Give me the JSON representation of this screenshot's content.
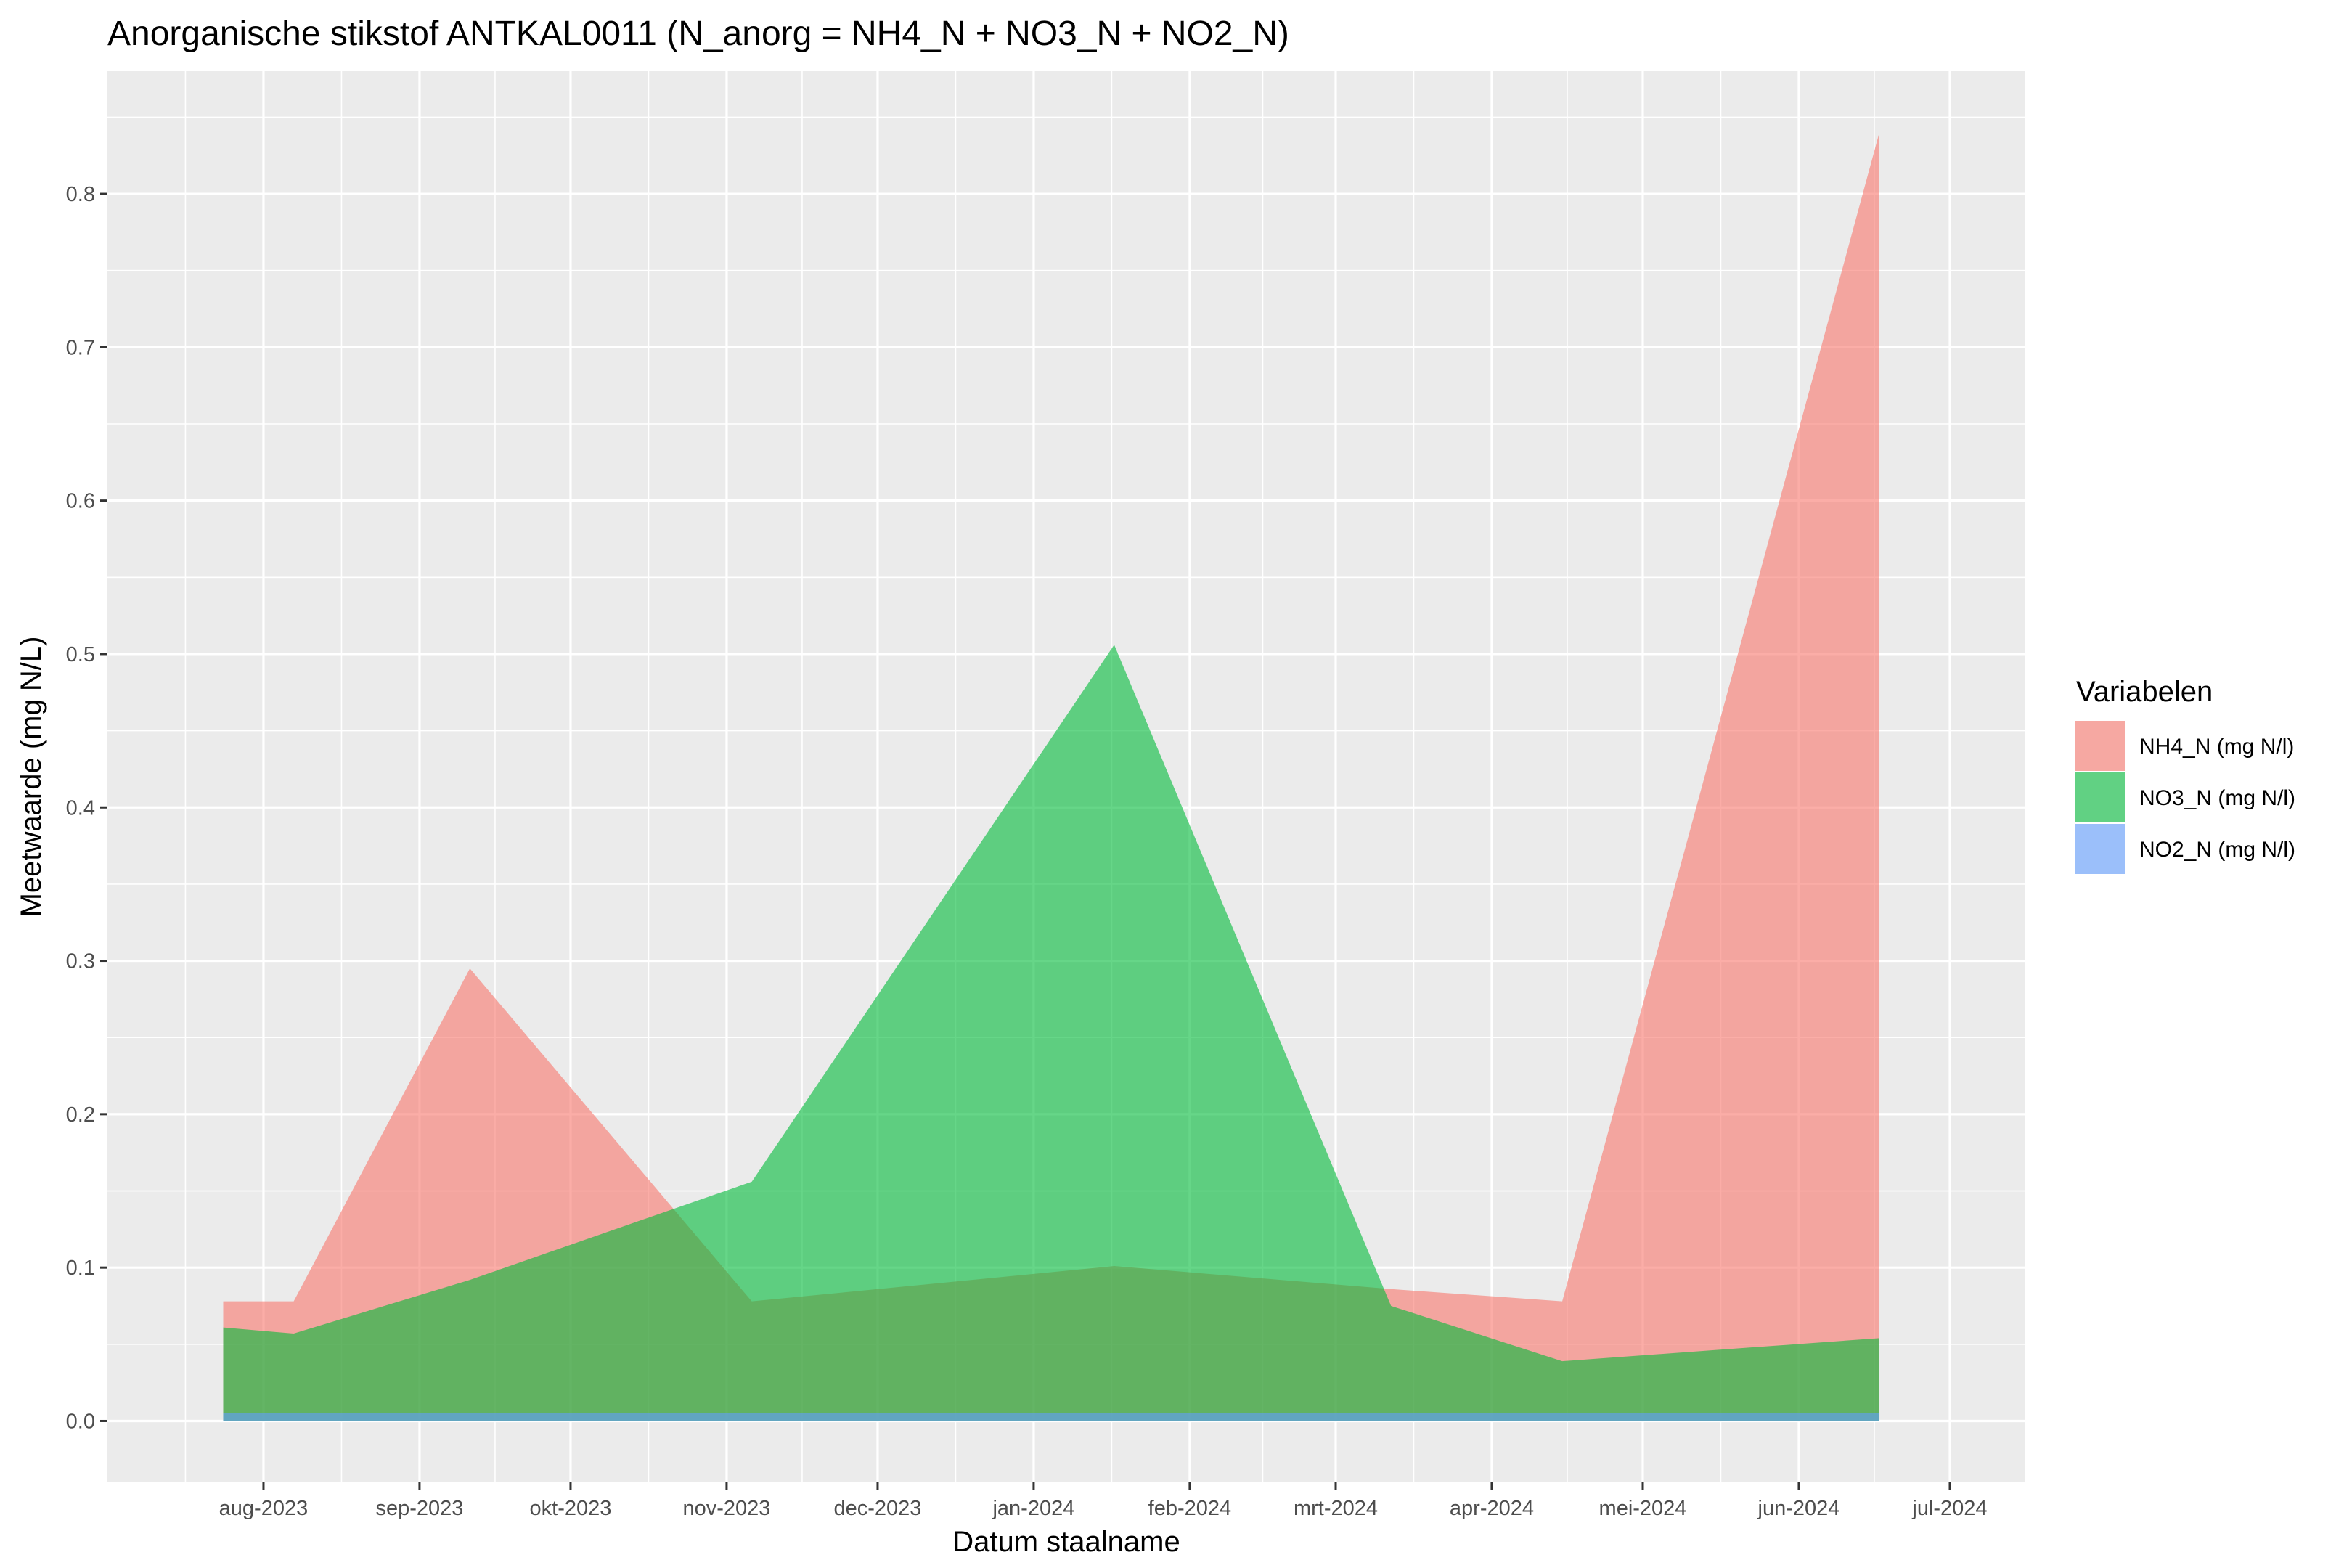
{
  "chart_data": {
    "type": "area",
    "title": "Anorganische stikstof ANTKAL0011 (N_anorg = NH4_N + NO3_N + NO2_N)",
    "xlabel": "Datum staalname",
    "ylabel": "Meetwaarde (mg N/L)",
    "xlim": [
      "2023-07-01",
      "2024-07-16"
    ],
    "ylim": [
      -0.04,
      0.88
    ],
    "x_ticks": [
      "2023-08-01",
      "2023-09-01",
      "2023-10-01",
      "2023-11-01",
      "2023-12-01",
      "2024-01-01",
      "2024-02-01",
      "2024-03-01",
      "2024-04-01",
      "2024-05-01",
      "2024-06-01",
      "2024-07-01"
    ],
    "x_tick_labels": [
      "aug-2023",
      "sep-2023",
      "okt-2023",
      "nov-2023",
      "dec-2023",
      "jan-2024",
      "feb-2024",
      "mrt-2024",
      "apr-2024",
      "mei-2024",
      "jun-2024",
      "jul-2024"
    ],
    "y_ticks": [
      0.0,
      0.1,
      0.2,
      0.3,
      0.4,
      0.5,
      0.6,
      0.7,
      0.8
    ],
    "y_tick_labels": [
      "0.0",
      "0.1",
      "0.2",
      "0.3",
      "0.4",
      "0.5",
      "0.6",
      "0.7",
      "0.8"
    ],
    "grid": true,
    "legend": {
      "title": "Variabelen",
      "position": "right"
    },
    "series": [
      {
        "name": "NH4_N (mg N/l)",
        "color": "#F8766D",
        "points": [
          {
            "x": "2023-07-24",
            "y": 0.078
          },
          {
            "x": "2023-08-07",
            "y": 0.078
          },
          {
            "x": "2023-09-11",
            "y": 0.295
          },
          {
            "x": "2023-11-06",
            "y": 0.078
          },
          {
            "x": "2024-01-17",
            "y": 0.101
          },
          {
            "x": "2024-03-12",
            "y": 0.086
          },
          {
            "x": "2024-04-15",
            "y": 0.078
          },
          {
            "x": "2024-06-17",
            "y": 0.84
          }
        ]
      },
      {
        "name": "NO3_N (mg N/l)",
        "color": "#00BA38",
        "points": [
          {
            "x": "2023-07-24",
            "y": 0.061
          },
          {
            "x": "2023-08-07",
            "y": 0.057
          },
          {
            "x": "2023-09-11",
            "y": 0.092
          },
          {
            "x": "2023-11-06",
            "y": 0.156
          },
          {
            "x": "2024-01-17",
            "y": 0.506
          },
          {
            "x": "2024-03-12",
            "y": 0.075
          },
          {
            "x": "2024-04-15",
            "y": 0.039
          },
          {
            "x": "2024-06-17",
            "y": 0.054
          }
        ]
      },
      {
        "name": "NO2_N (mg N/l)",
        "color": "#619CFF",
        "points": [
          {
            "x": "2023-07-24",
            "y": 0.005
          },
          {
            "x": "2023-08-07",
            "y": 0.005
          },
          {
            "x": "2023-09-11",
            "y": 0.005
          },
          {
            "x": "2023-11-06",
            "y": 0.005
          },
          {
            "x": "2024-01-17",
            "y": 0.005
          },
          {
            "x": "2024-03-12",
            "y": 0.005
          },
          {
            "x": "2024-04-15",
            "y": 0.005
          },
          {
            "x": "2024-06-17",
            "y": 0.005
          }
        ]
      }
    ]
  }
}
